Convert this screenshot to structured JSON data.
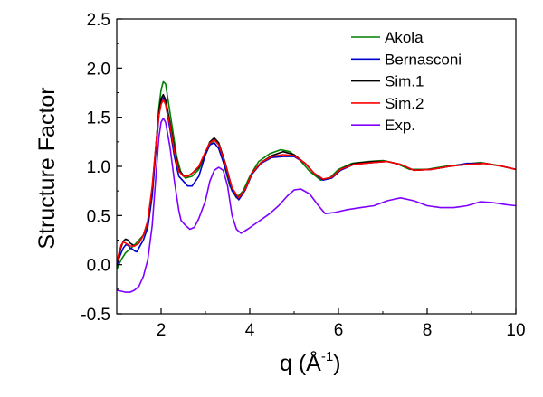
{
  "chart_data": {
    "type": "line",
    "title": "",
    "xlabel": "q (Å",
    "xlabel_sup": "-1",
    "xlabel_close": ")",
    "ylabel": "Structure Factor",
    "xlim": [
      1,
      10
    ],
    "ylim": [
      -0.5,
      2.5
    ],
    "grid": false,
    "legend_position": "top-right",
    "x_ticks": [
      2,
      4,
      6,
      8,
      10
    ],
    "x_tick_labels": [
      "2",
      "4",
      "6",
      "8",
      "10"
    ],
    "y_ticks": [
      -0.5,
      0.0,
      0.5,
      1.0,
      1.5,
      2.0,
      2.5
    ],
    "y_tick_labels": [
      "-0.5",
      "0.0",
      "0.5",
      "1.0",
      "1.5",
      "2.0",
      "2.5"
    ],
    "series": [
      {
        "name": "Akola",
        "color": "#008000",
        "points": [
          [
            1.0,
            -0.05
          ],
          [
            1.1,
            0.05
          ],
          [
            1.2,
            0.12
          ],
          [
            1.3,
            0.16
          ],
          [
            1.4,
            0.2
          ],
          [
            1.5,
            0.25
          ],
          [
            1.6,
            0.3
          ],
          [
            1.7,
            0.42
          ],
          [
            1.8,
            0.75
          ],
          [
            1.9,
            1.3
          ],
          [
            1.95,
            1.6
          ],
          [
            2.0,
            1.78
          ],
          [
            2.05,
            1.86
          ],
          [
            2.1,
            1.84
          ],
          [
            2.15,
            1.7
          ],
          [
            2.25,
            1.4
          ],
          [
            2.35,
            1.1
          ],
          [
            2.45,
            0.93
          ],
          [
            2.55,
            0.88
          ],
          [
            2.7,
            0.9
          ],
          [
            2.85,
            0.97
          ],
          [
            3.0,
            1.12
          ],
          [
            3.1,
            1.22
          ],
          [
            3.2,
            1.27
          ],
          [
            3.3,
            1.22
          ],
          [
            3.4,
            1.05
          ],
          [
            3.55,
            0.8
          ],
          [
            3.7,
            0.68
          ],
          [
            3.85,
            0.75
          ],
          [
            4.0,
            0.9
          ],
          [
            4.2,
            1.05
          ],
          [
            4.45,
            1.13
          ],
          [
            4.7,
            1.17
          ],
          [
            4.9,
            1.15
          ],
          [
            5.1,
            1.08
          ],
          [
            5.35,
            0.95
          ],
          [
            5.6,
            0.86
          ],
          [
            5.8,
            0.88
          ],
          [
            6.0,
            0.97
          ],
          [
            6.3,
            1.03
          ],
          [
            6.7,
            1.05
          ],
          [
            7.0,
            1.06
          ],
          [
            7.3,
            1.03
          ],
          [
            7.6,
            0.97
          ],
          [
            8.0,
            0.97
          ],
          [
            8.4,
            1.0
          ],
          [
            8.8,
            1.02
          ],
          [
            9.2,
            1.04
          ],
          [
            9.6,
            1.01
          ],
          [
            10.0,
            0.97
          ]
        ]
      },
      {
        "name": "Bernasconi",
        "color": "#0000cc",
        "points": [
          [
            1.0,
            -0.02
          ],
          [
            1.05,
            0.06
          ],
          [
            1.1,
            0.12
          ],
          [
            1.15,
            0.17
          ],
          [
            1.2,
            0.2
          ],
          [
            1.25,
            0.2
          ],
          [
            1.3,
            0.17
          ],
          [
            1.35,
            0.16
          ],
          [
            1.4,
            0.14
          ],
          [
            1.45,
            0.13
          ],
          [
            1.5,
            0.17
          ],
          [
            1.55,
            0.21
          ],
          [
            1.6,
            0.25
          ],
          [
            1.7,
            0.38
          ],
          [
            1.8,
            0.7
          ],
          [
            1.9,
            1.25
          ],
          [
            1.95,
            1.52
          ],
          [
            2.0,
            1.65
          ],
          [
            2.05,
            1.7
          ],
          [
            2.1,
            1.64
          ],
          [
            2.2,
            1.38
          ],
          [
            2.3,
            1.1
          ],
          [
            2.4,
            0.9
          ],
          [
            2.5,
            0.85
          ],
          [
            2.6,
            0.8
          ],
          [
            2.7,
            0.8
          ],
          [
            2.85,
            0.9
          ],
          [
            3.0,
            1.12
          ],
          [
            3.1,
            1.22
          ],
          [
            3.2,
            1.24
          ],
          [
            3.3,
            1.18
          ],
          [
            3.45,
            0.98
          ],
          [
            3.6,
            0.75
          ],
          [
            3.75,
            0.66
          ],
          [
            3.9,
            0.76
          ],
          [
            4.05,
            0.92
          ],
          [
            4.25,
            1.03
          ],
          [
            4.5,
            1.09
          ],
          [
            4.75,
            1.1
          ],
          [
            5.0,
            1.1
          ],
          [
            5.25,
            1.03
          ],
          [
            5.45,
            0.93
          ],
          [
            5.65,
            0.86
          ],
          [
            5.85,
            0.88
          ],
          [
            6.05,
            0.96
          ],
          [
            6.35,
            1.02
          ],
          [
            6.8,
            1.04
          ],
          [
            7.1,
            1.05
          ],
          [
            7.4,
            1.02
          ],
          [
            7.7,
            0.96
          ],
          [
            8.1,
            0.97
          ],
          [
            8.5,
            1.0
          ],
          [
            8.9,
            1.03
          ],
          [
            9.3,
            1.03
          ],
          [
            9.7,
            1.0
          ],
          [
            10.0,
            0.97
          ]
        ]
      },
      {
        "name": "Sim.1",
        "color": "#000000",
        "points": [
          [
            1.0,
            0.0
          ],
          [
            1.05,
            0.1
          ],
          [
            1.1,
            0.18
          ],
          [
            1.15,
            0.24
          ],
          [
            1.2,
            0.26
          ],
          [
            1.25,
            0.25
          ],
          [
            1.3,
            0.22
          ],
          [
            1.4,
            0.19
          ],
          [
            1.5,
            0.22
          ],
          [
            1.6,
            0.3
          ],
          [
            1.7,
            0.44
          ],
          [
            1.8,
            0.78
          ],
          [
            1.9,
            1.3
          ],
          [
            1.95,
            1.56
          ],
          [
            2.0,
            1.69
          ],
          [
            2.05,
            1.73
          ],
          [
            2.1,
            1.68
          ],
          [
            2.2,
            1.45
          ],
          [
            2.3,
            1.18
          ],
          [
            2.4,
            0.97
          ],
          [
            2.5,
            0.91
          ],
          [
            2.6,
            0.9
          ],
          [
            2.7,
            0.93
          ],
          [
            2.85,
            0.99
          ],
          [
            3.0,
            1.14
          ],
          [
            3.1,
            1.25
          ],
          [
            3.2,
            1.29
          ],
          [
            3.3,
            1.24
          ],
          [
            3.45,
            1.03
          ],
          [
            3.6,
            0.78
          ],
          [
            3.75,
            0.68
          ],
          [
            3.9,
            0.77
          ],
          [
            4.05,
            0.93
          ],
          [
            4.25,
            1.04
          ],
          [
            4.5,
            1.11
          ],
          [
            4.75,
            1.15
          ],
          [
            5.0,
            1.12
          ],
          [
            5.25,
            1.03
          ],
          [
            5.45,
            0.93
          ],
          [
            5.65,
            0.87
          ],
          [
            5.85,
            0.89
          ],
          [
            6.05,
            0.97
          ],
          [
            6.35,
            1.03
          ],
          [
            6.8,
            1.05
          ],
          [
            7.1,
            1.05
          ],
          [
            7.4,
            1.02
          ],
          [
            7.7,
            0.96
          ],
          [
            8.1,
            0.97
          ],
          [
            8.5,
            1.0
          ],
          [
            8.9,
            1.02
          ],
          [
            9.3,
            1.03
          ],
          [
            9.7,
            1.0
          ],
          [
            10.0,
            0.97
          ]
        ]
      },
      {
        "name": "Sim.2",
        "color": "#ff0000",
        "points": [
          [
            1.0,
            0.02
          ],
          [
            1.05,
            0.12
          ],
          [
            1.1,
            0.2
          ],
          [
            1.15,
            0.23
          ],
          [
            1.2,
            0.22
          ],
          [
            1.3,
            0.19
          ],
          [
            1.4,
            0.19
          ],
          [
            1.5,
            0.22
          ],
          [
            1.6,
            0.3
          ],
          [
            1.7,
            0.45
          ],
          [
            1.8,
            0.8
          ],
          [
            1.9,
            1.3
          ],
          [
            1.95,
            1.52
          ],
          [
            2.0,
            1.63
          ],
          [
            2.05,
            1.68
          ],
          [
            2.1,
            1.63
          ],
          [
            2.2,
            1.42
          ],
          [
            2.3,
            1.15
          ],
          [
            2.4,
            0.95
          ],
          [
            2.5,
            0.9
          ],
          [
            2.6,
            0.9
          ],
          [
            2.7,
            0.93
          ],
          [
            2.85,
            1.0
          ],
          [
            3.0,
            1.15
          ],
          [
            3.1,
            1.24
          ],
          [
            3.2,
            1.27
          ],
          [
            3.3,
            1.22
          ],
          [
            3.45,
            1.02
          ],
          [
            3.6,
            0.78
          ],
          [
            3.75,
            0.68
          ],
          [
            3.9,
            0.77
          ],
          [
            4.05,
            0.93
          ],
          [
            4.25,
            1.04
          ],
          [
            4.5,
            1.1
          ],
          [
            4.75,
            1.12
          ],
          [
            5.0,
            1.11
          ],
          [
            5.25,
            1.03
          ],
          [
            5.45,
            0.93
          ],
          [
            5.65,
            0.87
          ],
          [
            5.85,
            0.89
          ],
          [
            6.05,
            0.97
          ],
          [
            6.35,
            1.02
          ],
          [
            6.8,
            1.04
          ],
          [
            7.1,
            1.05
          ],
          [
            7.4,
            1.02
          ],
          [
            7.7,
            0.96
          ],
          [
            8.1,
            0.97
          ],
          [
            8.5,
            1.0
          ],
          [
            8.9,
            1.02
          ],
          [
            9.3,
            1.03
          ],
          [
            9.7,
            1.0
          ],
          [
            10.0,
            0.97
          ]
        ]
      },
      {
        "name": "Exp.",
        "color": "#7f00ff",
        "points": [
          [
            1.0,
            -0.26
          ],
          [
            1.1,
            -0.27
          ],
          [
            1.2,
            -0.28
          ],
          [
            1.3,
            -0.28
          ],
          [
            1.4,
            -0.26
          ],
          [
            1.5,
            -0.22
          ],
          [
            1.6,
            -0.12
          ],
          [
            1.7,
            0.05
          ],
          [
            1.8,
            0.4
          ],
          [
            1.9,
            1.0
          ],
          [
            1.95,
            1.3
          ],
          [
            2.0,
            1.45
          ],
          [
            2.05,
            1.49
          ],
          [
            2.1,
            1.45
          ],
          [
            2.2,
            1.2
          ],
          [
            2.3,
            0.85
          ],
          [
            2.4,
            0.55
          ],
          [
            2.45,
            0.45
          ],
          [
            2.55,
            0.4
          ],
          [
            2.65,
            0.36
          ],
          [
            2.75,
            0.38
          ],
          [
            2.85,
            0.47
          ],
          [
            3.0,
            0.65
          ],
          [
            3.1,
            0.85
          ],
          [
            3.2,
            0.96
          ],
          [
            3.3,
            0.99
          ],
          [
            3.4,
            0.96
          ],
          [
            3.5,
            0.8
          ],
          [
            3.6,
            0.5
          ],
          [
            3.7,
            0.36
          ],
          [
            3.8,
            0.32
          ],
          [
            3.95,
            0.36
          ],
          [
            4.2,
            0.44
          ],
          [
            4.45,
            0.52
          ],
          [
            4.65,
            0.6
          ],
          [
            4.85,
            0.7
          ],
          [
            5.0,
            0.76
          ],
          [
            5.15,
            0.77
          ],
          [
            5.35,
            0.72
          ],
          [
            5.55,
            0.6
          ],
          [
            5.7,
            0.52
          ],
          [
            5.9,
            0.53
          ],
          [
            6.2,
            0.56
          ],
          [
            6.5,
            0.58
          ],
          [
            6.8,
            0.6
          ],
          [
            7.1,
            0.65
          ],
          [
            7.4,
            0.68
          ],
          [
            7.7,
            0.65
          ],
          [
            8.0,
            0.6
          ],
          [
            8.3,
            0.58
          ],
          [
            8.6,
            0.58
          ],
          [
            8.9,
            0.6
          ],
          [
            9.2,
            0.64
          ],
          [
            9.5,
            0.63
          ],
          [
            9.8,
            0.61
          ],
          [
            10.0,
            0.6
          ]
        ]
      }
    ]
  }
}
